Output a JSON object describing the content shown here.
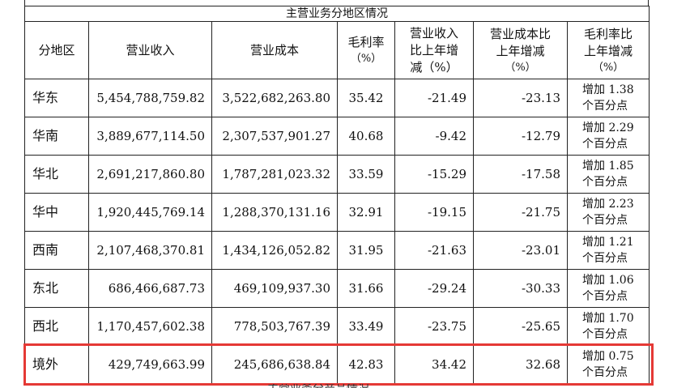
{
  "title": "主营业务分地区情况",
  "headers": {
    "region": "分地区",
    "revenue": "营业收入",
    "cost": "营业成本",
    "margin": [
      "毛利率",
      "（%）"
    ],
    "revenue_change": [
      "营业收入",
      "比上年增",
      "减（%）"
    ],
    "cost_change": [
      "营业成本比",
      "上年增减",
      "（%）"
    ],
    "margin_change": [
      "毛利率比",
      "上年增减",
      "（%）"
    ]
  },
  "rows": [
    {
      "region": "华东",
      "revenue": "5,454,788,759.82",
      "cost": "3,522,682,263.80",
      "margin": "35.42",
      "revenue_change": "-21.49",
      "cost_change": "-23.13",
      "margin_change": [
        "增加 1.38",
        "个百分点"
      ]
    },
    {
      "region": "华南",
      "revenue": "3,889,677,114.50",
      "cost": "2,307,537,901.27",
      "margin": "40.68",
      "revenue_change": "-9.42",
      "cost_change": "-12.79",
      "margin_change": [
        "增加 2.29",
        "个百分点"
      ]
    },
    {
      "region": "华北",
      "revenue": "2,691,217,860.80",
      "cost": "1,787,281,023.32",
      "margin": "33.59",
      "revenue_change": "-15.29",
      "cost_change": "-17.58",
      "margin_change": [
        "增加 1.85",
        "个百分点"
      ]
    },
    {
      "region": "华中",
      "revenue": "1,920,445,769.14",
      "cost": "1,288,370,131.16",
      "margin": "32.91",
      "revenue_change": "-19.15",
      "cost_change": "-21.75",
      "margin_change": [
        "增加 2.23",
        "个百分点"
      ]
    },
    {
      "region": "西南",
      "revenue": "2,107,468,370.81",
      "cost": "1,434,126,052.82",
      "margin": "31.95",
      "revenue_change": "-21.63",
      "cost_change": "-23.01",
      "margin_change": [
        "增加 1.21",
        "个百分点"
      ]
    },
    {
      "region": "东北",
      "revenue": "686,466,687.73",
      "cost": "469,109,937.30",
      "margin": "31.66",
      "revenue_change": "-29.24",
      "cost_change": "-30.33",
      "margin_change": [
        "增加 1.06",
        "个百分点"
      ]
    },
    {
      "region": "西北",
      "revenue": "1,170,457,602.38",
      "cost": "778,503,767.39",
      "margin": "33.49",
      "revenue_change": "-23.75",
      "cost_change": "-25.65",
      "margin_change": [
        "增加 1.70",
        "个百分点"
      ]
    },
    {
      "region": "境外",
      "revenue": "429,749,663.99",
      "cost": "245,686,638.84",
      "margin": "42.83",
      "revenue_change": "34.42",
      "cost_change": "32.68",
      "margin_change": [
        "增加 0.75",
        "个百分点"
      ]
    }
  ],
  "highlight_color": "#e53935",
  "footer_cut_text": "主营业务分产品情况"
}
